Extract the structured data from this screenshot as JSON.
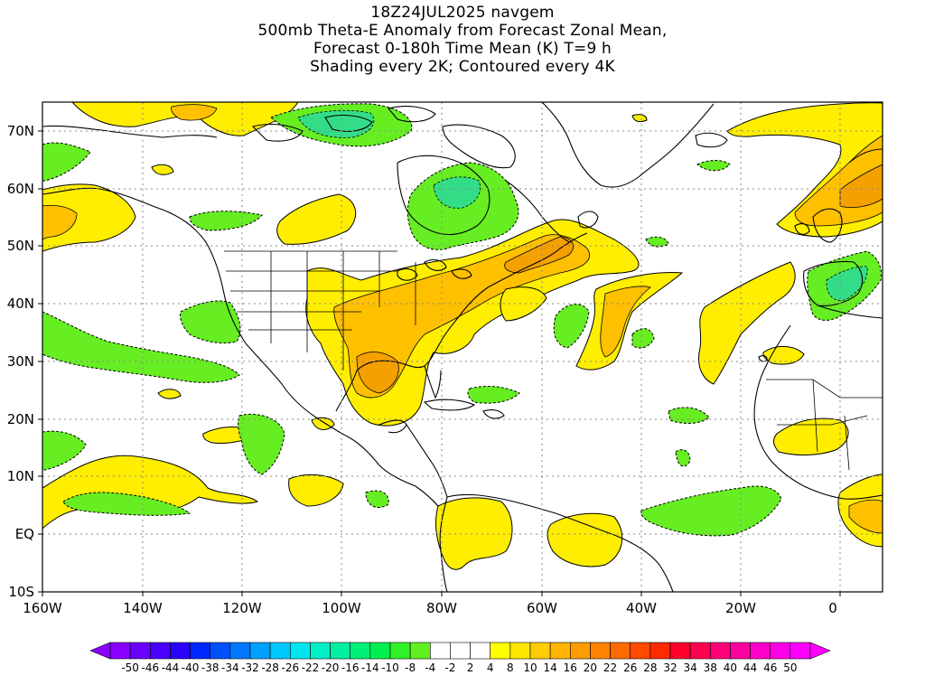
{
  "titles": {
    "line1": "18Z24JUL2025 navgem",
    "line2": "500mb Theta-E Anomaly from Forecast Zonal Mean,",
    "line3": "Forecast 0-180h Time Mean (K) T=9 h",
    "line4": "Shading every 2K; Contoured every 4K"
  },
  "map": {
    "region": "North Atlantic and Americas",
    "lon_range": [
      -160,
      10
    ],
    "lat_range": [
      -10,
      75
    ],
    "x_ticks": [
      "160W",
      "140W",
      "120W",
      "100W",
      "80W",
      "60W",
      "40W",
      "20W",
      "0"
    ],
    "y_ticks": [
      "70N",
      "60N",
      "50N",
      "40N",
      "30N",
      "20N",
      "10N",
      "EQ",
      "10S"
    ],
    "gridlines": "dotted",
    "field": "500mb Theta-E Anomaly",
    "units": "K"
  },
  "colorbar": {
    "labels": [
      "-50",
      "-46",
      "-44",
      "-40",
      "-38",
      "-34",
      "-32",
      "-28",
      "-26",
      "-22",
      "-20",
      "-16",
      "-14",
      "-10",
      "-8",
      "-4",
      "-2",
      "2",
      "4",
      "8",
      "10",
      "14",
      "16",
      "20",
      "22",
      "26",
      "28",
      "32",
      "34",
      "38",
      "40",
      "44",
      "46",
      "50"
    ],
    "colors": [
      "#8a00ff",
      "#6a00ff",
      "#4a00ff",
      "#2a00ff",
      "#0028ff",
      "#0050ff",
      "#0078ff",
      "#00a0ff",
      "#00c8ff",
      "#00e6f0",
      "#00f0c8",
      "#00f0a0",
      "#00f078",
      "#00f050",
      "#30f028",
      "#60f020",
      "#ffffff",
      "#ffffff",
      "#ffffff",
      "#ffff00",
      "#ffe600",
      "#ffcc00",
      "#ffb400",
      "#ff9c00",
      "#ff8200",
      "#ff6a00",
      "#ff4a00",
      "#ff2a00",
      "#ff0028",
      "#ff0050",
      "#ff0078",
      "#ff00a0",
      "#ff00c8",
      "#ff00e6",
      "#ff00ff"
    ]
  },
  "colors": {
    "negative_small": "#66ee22",
    "negative_mid": "#33dd88",
    "positive_small": "#ffee00",
    "positive_mid": "#ffc000",
    "positive_large": "#f4a000",
    "coast": "#000000"
  }
}
